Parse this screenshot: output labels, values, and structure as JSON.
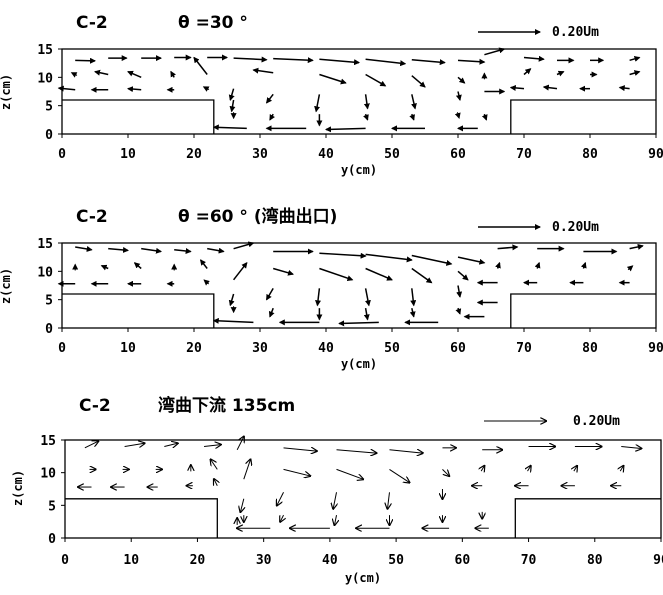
{
  "chart_data": [
    {
      "type": "vector_field",
      "title": "C-2",
      "subtitle": "θ =30 °",
      "xlabel": "y(cm)",
      "ylabel": "z(cm)",
      "xlim": [
        0,
        90
      ],
      "ylim": [
        0,
        15
      ],
      "xticks": [
        "0",
        "10",
        "20",
        "30",
        "40",
        "50",
        "60",
        "70",
        "80",
        "90"
      ],
      "yticks": [
        "0",
        "5",
        "10",
        "15"
      ],
      "reference_vector_label": "0.20Um",
      "reference_vector_value": 0.2,
      "banks": [
        {
          "side": "left",
          "y_range": [
            0,
            23
          ],
          "z_top": 6
        },
        {
          "side": "right",
          "y_range": [
            68,
            90
          ],
          "z_top": 6
        }
      ],
      "vectors": [
        {
          "y": 2,
          "z": 13,
          "u": 3,
          "v": -0.1
        },
        {
          "y": 7,
          "z": 13.4,
          "u": 2.8,
          "v": 0
        },
        {
          "y": 12,
          "z": 13.4,
          "u": 3,
          "v": 0
        },
        {
          "y": 17,
          "z": 13.5,
          "u": 2.5,
          "v": 0
        },
        {
          "y": 22,
          "z": 13.5,
          "u": 3,
          "v": 0
        },
        {
          "y": 26,
          "z": 13.4,
          "u": 5,
          "v": -0.3
        },
        {
          "y": 32,
          "z": 13.3,
          "u": 6,
          "v": -0.3
        },
        {
          "y": 39,
          "z": 13.2,
          "u": 6,
          "v": -0.6
        },
        {
          "y": 46,
          "z": 13.2,
          "u": 6,
          "v": -0.8
        },
        {
          "y": 53,
          "z": 13.1,
          "u": 5,
          "v": -0.5
        },
        {
          "y": 60,
          "z": 13,
          "u": 4,
          "v": -0.3
        },
        {
          "y": 64,
          "z": 14,
          "u": 3,
          "v": 1
        },
        {
          "y": 70,
          "z": 13.5,
          "u": 3,
          "v": -0.3
        },
        {
          "y": 75,
          "z": 13,
          "u": 2.5,
          "v": 0
        },
        {
          "y": 80,
          "z": 13,
          "u": 2,
          "v": 0
        },
        {
          "y": 86,
          "z": 13,
          "u": 1.5,
          "v": 0.5
        },
        {
          "y": 2,
          "z": 10.5,
          "u": -0.5,
          "v": 0.3
        },
        {
          "y": 7,
          "z": 10.5,
          "u": -2,
          "v": 0.5
        },
        {
          "y": 12,
          "z": 10,
          "u": -2,
          "v": 1
        },
        {
          "y": 17,
          "z": 10,
          "u": -0.5,
          "v": 1
        },
        {
          "y": 22,
          "z": 10.5,
          "u": -2,
          "v": 3
        },
        {
          "y": 26,
          "z": 8,
          "u": -0.5,
          "v": -2
        },
        {
          "y": 32,
          "z": 10.8,
          "u": -3,
          "v": 0.5
        },
        {
          "y": 39,
          "z": 10.5,
          "u": 4,
          "v": -1.5
        },
        {
          "y": 46,
          "z": 10.5,
          "u": 3,
          "v": -2
        },
        {
          "y": 53,
          "z": 10.3,
          "u": 2,
          "v": -2
        },
        {
          "y": 60,
          "z": 10,
          "u": 1,
          "v": -1
        },
        {
          "y": 64,
          "z": 10,
          "u": 0,
          "v": 1
        },
        {
          "y": 70,
          "z": 10.5,
          "u": 1,
          "v": 1
        },
        {
          "y": 75,
          "z": 10.5,
          "u": 1,
          "v": 0.5
        },
        {
          "y": 80,
          "z": 10.5,
          "u": 1,
          "v": 0
        },
        {
          "y": 86,
          "z": 10.5,
          "u": 1.5,
          "v": 0.5
        },
        {
          "y": 2,
          "z": 7.8,
          "u": -2.5,
          "v": 0.3
        },
        {
          "y": 7,
          "z": 7.8,
          "u": -2.5,
          "v": 0
        },
        {
          "y": 12,
          "z": 7.8,
          "u": -2,
          "v": 0.2
        },
        {
          "y": 17,
          "z": 7.8,
          "u": -1,
          "v": 0
        },
        {
          "y": 22,
          "z": 8,
          "u": -0.5,
          "v": 0.3
        },
        {
          "y": 26,
          "z": 6,
          "u": -0.3,
          "v": -2
        },
        {
          "y": 32,
          "z": 7,
          "u": -1,
          "v": -1.5
        },
        {
          "y": 39,
          "z": 7,
          "u": -0.5,
          "v": -3
        },
        {
          "y": 46,
          "z": 7,
          "u": 0.3,
          "v": -2.5
        },
        {
          "y": 53,
          "z": 7,
          "u": 0.5,
          "v": -2.5
        },
        {
          "y": 60,
          "z": 7.5,
          "u": 0.3,
          "v": -1.5
        },
        {
          "y": 64,
          "z": 7.5,
          "u": 3,
          "v": 0
        },
        {
          "y": 70,
          "z": 8,
          "u": -2,
          "v": 0.2
        },
        {
          "y": 75,
          "z": 8,
          "u": -2,
          "v": 0.3
        },
        {
          "y": 80,
          "z": 8,
          "u": -1.5,
          "v": 0
        },
        {
          "y": 86,
          "z": 8,
          "u": -1.5,
          "v": 0.2
        },
        {
          "y": 26,
          "z": 3.5,
          "u": 0,
          "v": -1
        },
        {
          "y": 32,
          "z": 3.5,
          "u": -0.5,
          "v": -1
        },
        {
          "y": 39,
          "z": 3.5,
          "u": 0,
          "v": -2
        },
        {
          "y": 46,
          "z": 3.5,
          "u": 0.3,
          "v": -1
        },
        {
          "y": 53,
          "z": 3.5,
          "u": 0.3,
          "v": -1
        },
        {
          "y": 60,
          "z": 3.5,
          "u": 0.2,
          "v": -0.8
        },
        {
          "y": 64,
          "z": 3.5,
          "u": 0.3,
          "v": -1
        },
        {
          "y": 28,
          "z": 1,
          "u": -5,
          "v": 0.2
        },
        {
          "y": 37,
          "z": 1,
          "u": -6,
          "v": 0
        },
        {
          "y": 46,
          "z": 1,
          "u": -6,
          "v": -0.2
        },
        {
          "y": 55,
          "z": 1,
          "u": -5,
          "v": 0
        },
        {
          "y": 63,
          "z": 1,
          "u": -3,
          "v": 0
        }
      ]
    },
    {
      "type": "vector_field",
      "title": "C-2",
      "subtitle": "θ =60 ° (湾曲出口)",
      "xlabel": "y(cm)",
      "ylabel": "z(cm)",
      "xlim": [
        0,
        90
      ],
      "ylim": [
        0,
        15
      ],
      "xticks": [
        "0",
        "10",
        "20",
        "30",
        "40",
        "50",
        "60",
        "70",
        "80",
        "90"
      ],
      "yticks": [
        "0",
        "5",
        "10",
        "15"
      ],
      "reference_vector_label": "0.20Um",
      "reference_vector_value": 0.2,
      "banks": [
        {
          "side": "left",
          "y_range": [
            0,
            23
          ],
          "z_top": 6
        },
        {
          "side": "right",
          "y_range": [
            68,
            90
          ],
          "z_top": 6
        }
      ],
      "vectors": [
        {
          "y": 2,
          "z": 14.3,
          "u": 2.5,
          "v": -0.5
        },
        {
          "y": 7,
          "z": 14,
          "u": 3,
          "v": -0.3
        },
        {
          "y": 12,
          "z": 14,
          "u": 3,
          "v": -0.5
        },
        {
          "y": 17,
          "z": 13.8,
          "u": 2.5,
          "v": -0.3
        },
        {
          "y": 22,
          "z": 14,
          "u": 2.5,
          "v": -0.5
        },
        {
          "y": 26,
          "z": 14,
          "u": 3,
          "v": 1
        },
        {
          "y": 32,
          "z": 13.5,
          "u": 6,
          "v": 0
        },
        {
          "y": 39,
          "z": 13.2,
          "u": 7,
          "v": -0.5
        },
        {
          "y": 46,
          "z": 13,
          "u": 7,
          "v": -1
        },
        {
          "y": 53,
          "z": 12.8,
          "u": 6,
          "v": -1.5
        },
        {
          "y": 60,
          "z": 12.5,
          "u": 4,
          "v": -1
        },
        {
          "y": 66,
          "z": 14,
          "u": 3,
          "v": 0.3
        },
        {
          "y": 72,
          "z": 14,
          "u": 4,
          "v": 0
        },
        {
          "y": 79,
          "z": 13.5,
          "u": 5,
          "v": 0
        },
        {
          "y": 86,
          "z": 14,
          "u": 2,
          "v": 0.5
        },
        {
          "y": 2,
          "z": 10.5,
          "u": 0,
          "v": 0.8
        },
        {
          "y": 7,
          "z": 10.5,
          "u": -1,
          "v": 0.5
        },
        {
          "y": 12,
          "z": 10.5,
          "u": -1,
          "v": 1
        },
        {
          "y": 17,
          "z": 10.5,
          "u": 0,
          "v": 1
        },
        {
          "y": 22,
          "z": 10.5,
          "u": -1,
          "v": 1.5
        },
        {
          "y": 26,
          "z": 8.5,
          "u": 2,
          "v": 3
        },
        {
          "y": 32,
          "z": 10.5,
          "u": 3,
          "v": -1
        },
        {
          "y": 39,
          "z": 10.5,
          "u": 5,
          "v": -2
        },
        {
          "y": 46,
          "z": 10.5,
          "u": 4,
          "v": -2
        },
        {
          "y": 53,
          "z": 10.5,
          "u": 3,
          "v": -2.5
        },
        {
          "y": 60,
          "z": 10,
          "u": 1.5,
          "v": -1.5
        },
        {
          "y": 66,
          "z": 10.5,
          "u": 0.3,
          "v": 1
        },
        {
          "y": 72,
          "z": 10.5,
          "u": 0.3,
          "v": 1
        },
        {
          "y": 79,
          "z": 10.5,
          "u": 0.3,
          "v": 1
        },
        {
          "y": 86,
          "z": 10.5,
          "u": 0.5,
          "v": 0.5
        },
        {
          "y": 2,
          "z": 7.8,
          "u": -2.5,
          "v": 0
        },
        {
          "y": 7,
          "z": 7.8,
          "u": -2.5,
          "v": 0
        },
        {
          "y": 12,
          "z": 7.8,
          "u": -2,
          "v": 0
        },
        {
          "y": 17,
          "z": 7.8,
          "u": -1,
          "v": 0
        },
        {
          "y": 22,
          "z": 8,
          "u": -0.5,
          "v": 0.5
        },
        {
          "y": 26,
          "z": 6,
          "u": -0.5,
          "v": -2
        },
        {
          "y": 32,
          "z": 7,
          "u": -1,
          "v": -2
        },
        {
          "y": 39,
          "z": 7,
          "u": -0.3,
          "v": -3
        },
        {
          "y": 46,
          "z": 7,
          "u": 0.5,
          "v": -3
        },
        {
          "y": 53,
          "z": 7,
          "u": 0.3,
          "v": -3
        },
        {
          "y": 60,
          "z": 7.5,
          "u": 0.3,
          "v": -2
        },
        {
          "y": 66,
          "z": 8,
          "u": -3,
          "v": 0
        },
        {
          "y": 72,
          "z": 8,
          "u": -2,
          "v": 0
        },
        {
          "y": 79,
          "z": 8,
          "u": -2,
          "v": 0
        },
        {
          "y": 86,
          "z": 8,
          "u": -1.5,
          "v": 0
        },
        {
          "y": 26,
          "z": 3.5,
          "u": 0,
          "v": -1
        },
        {
          "y": 32,
          "z": 3.5,
          "u": -0.5,
          "v": -1.5
        },
        {
          "y": 39,
          "z": 3.5,
          "u": 0,
          "v": -2
        },
        {
          "y": 46,
          "z": 3.5,
          "u": 0.3,
          "v": -2
        },
        {
          "y": 53,
          "z": 3.5,
          "u": 0.3,
          "v": -1.5
        },
        {
          "y": 60,
          "z": 3.5,
          "u": 0.3,
          "v": -1
        },
        {
          "y": 66,
          "z": 4.5,
          "u": -3,
          "v": 0
        },
        {
          "y": 29,
          "z": 1,
          "u": -6,
          "v": 0.3
        },
        {
          "y": 39,
          "z": 1,
          "u": -6,
          "v": 0
        },
        {
          "y": 48,
          "z": 1,
          "u": -6,
          "v": -0.2
        },
        {
          "y": 57,
          "z": 1,
          "u": -5,
          "v": 0
        },
        {
          "y": 64,
          "z": 2,
          "u": -3,
          "v": 0
        }
      ]
    },
    {
      "type": "vector_field",
      "title": "C-2",
      "subtitle": "湾曲下流 135cm",
      "xlabel": "y(cm)",
      "ylabel": "z(cm)",
      "xlim": [
        0,
        90
      ],
      "ylim": [
        0,
        15
      ],
      "xticks": [
        "0",
        "10",
        "20",
        "30",
        "40",
        "50",
        "60",
        "70",
        "80",
        "90"
      ],
      "yticks": [
        "0",
        "5",
        "10",
        "15"
      ],
      "reference_vector_label": "0.20Um",
      "reference_vector_value": 0.2,
      "banks": [
        {
          "side": "left",
          "y_range": [
            0,
            23
          ],
          "z_top": 6
        },
        {
          "side": "right",
          "y_range": [
            68,
            90
          ],
          "z_top": 6
        }
      ],
      "vectors": [
        {
          "y": 3,
          "z": 13.8,
          "u": 2,
          "v": 1
        },
        {
          "y": 9,
          "z": 14,
          "u": 3,
          "v": 0.5
        },
        {
          "y": 15,
          "z": 14,
          "u": 2,
          "v": 0.5
        },
        {
          "y": 21,
          "z": 14,
          "u": 2.5,
          "v": 0.3
        },
        {
          "y": 26,
          "z": 13.5,
          "u": 1,
          "v": 2
        },
        {
          "y": 33,
          "z": 13.8,
          "u": 5,
          "v": -0.5
        },
        {
          "y": 41,
          "z": 13.5,
          "u": 6,
          "v": -0.5
        },
        {
          "y": 49,
          "z": 13.5,
          "u": 5,
          "v": -0.5
        },
        {
          "y": 57,
          "z": 13.8,
          "u": 2,
          "v": 0
        },
        {
          "y": 63,
          "z": 13.5,
          "u": 3,
          "v": 0
        },
        {
          "y": 70,
          "z": 14,
          "u": 4,
          "v": 0
        },
        {
          "y": 77,
          "z": 14,
          "u": 4,
          "v": 0
        },
        {
          "y": 84,
          "z": 14,
          "u": 3,
          "v": -0.3
        },
        {
          "y": 4,
          "z": 10.5,
          "u": 0.3,
          "v": 0
        },
        {
          "y": 9,
          "z": 10.5,
          "u": 0.5,
          "v": 0
        },
        {
          "y": 14,
          "z": 10.5,
          "u": 0.5,
          "v": 0
        },
        {
          "y": 19,
          "z": 10.5,
          "u": 0,
          "v": 0.5
        },
        {
          "y": 23,
          "z": 10.5,
          "u": -1,
          "v": 1.5
        },
        {
          "y": 27,
          "z": 9,
          "u": 1,
          "v": 3
        },
        {
          "y": 33,
          "z": 10.5,
          "u": 4,
          "v": -1
        },
        {
          "y": 41,
          "z": 10.5,
          "u": 4,
          "v": -1.5
        },
        {
          "y": 49,
          "z": 10.5,
          "u": 3,
          "v": -2
        },
        {
          "y": 57,
          "z": 10.5,
          "u": 1,
          "v": -1
        },
        {
          "y": 63,
          "z": 10.5,
          "u": 0.3,
          "v": 0.5
        },
        {
          "y": 70,
          "z": 10.5,
          "u": 0.3,
          "v": 0.5
        },
        {
          "y": 77,
          "z": 10.5,
          "u": 0.3,
          "v": 0.5
        },
        {
          "y": 84,
          "z": 10.5,
          "u": 0.3,
          "v": 0.5
        },
        {
          "y": 4,
          "z": 7.8,
          "u": -2,
          "v": 0
        },
        {
          "y": 9,
          "z": 7.8,
          "u": -2,
          "v": 0
        },
        {
          "y": 14,
          "z": 7.8,
          "u": -1.5,
          "v": 0
        },
        {
          "y": 19,
          "z": 8,
          "u": -0.5,
          "v": 0
        },
        {
          "y": 23,
          "z": 8,
          "u": -0.5,
          "v": 1
        },
        {
          "y": 27,
          "z": 6,
          "u": -0.5,
          "v": -2
        },
        {
          "y": 33,
          "z": 7,
          "u": -1,
          "v": -2
        },
        {
          "y": 41,
          "z": 7,
          "u": -0.5,
          "v": -2.5
        },
        {
          "y": 49,
          "z": 7,
          "u": -0.3,
          "v": -2.5
        },
        {
          "y": 57,
          "z": 7.5,
          "u": 0,
          "v": -1.5
        },
        {
          "y": 63,
          "z": 8,
          "u": -1.5,
          "v": 0
        },
        {
          "y": 70,
          "z": 8,
          "u": -2,
          "v": 0
        },
        {
          "y": 77,
          "z": 8,
          "u": -2,
          "v": 0
        },
        {
          "y": 84,
          "z": 8,
          "u": -1.5,
          "v": 0
        },
        {
          "y": 27,
          "z": 3.5,
          "u": 0,
          "v": -1
        },
        {
          "y": 33,
          "z": 3.5,
          "u": -0.5,
          "v": -1
        },
        {
          "y": 41,
          "z": 3.5,
          "u": -0.3,
          "v": -1.5
        },
        {
          "y": 49,
          "z": 3.5,
          "u": 0,
          "v": -1.5
        },
        {
          "y": 57,
          "z": 3.5,
          "u": 0,
          "v": -1
        },
        {
          "y": 63,
          "z": 4,
          "u": 0,
          "v": -1
        },
        {
          "y": 26,
          "z": 2,
          "u": 0,
          "v": 1
        },
        {
          "y": 31,
          "z": 1.5,
          "u": -5,
          "v": 0
        },
        {
          "y": 40,
          "z": 1.5,
          "u": -6,
          "v": 0
        },
        {
          "y": 49,
          "z": 1.5,
          "u": -5,
          "v": 0
        },
        {
          "y": 58,
          "z": 1.5,
          "u": -4,
          "v": 0
        },
        {
          "y": 64,
          "z": 1.5,
          "u": -2,
          "v": 0
        }
      ]
    }
  ]
}
